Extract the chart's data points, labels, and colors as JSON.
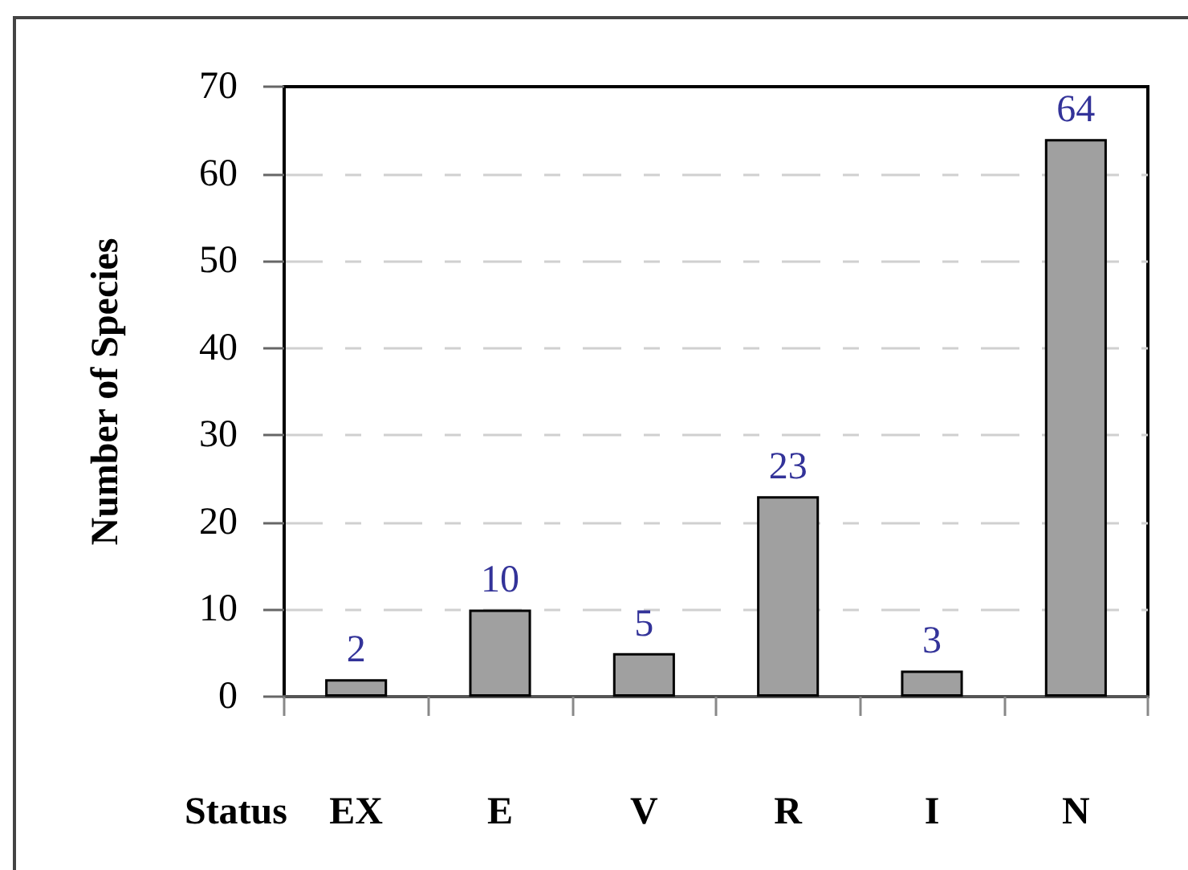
{
  "chart_data": {
    "type": "bar",
    "xlabel": "Status",
    "ylabel": "Number of Species",
    "categories": [
      "EX",
      "E",
      "V",
      "R",
      "I",
      "N"
    ],
    "values": [
      2,
      10,
      5,
      23,
      3,
      64
    ],
    "color": "#a0a0a0",
    "ylim": [
      0,
      70
    ],
    "yticks": [
      0,
      10,
      20,
      30,
      40,
      50,
      60,
      70
    ],
    "grid": "y",
    "data_labels": true
  }
}
